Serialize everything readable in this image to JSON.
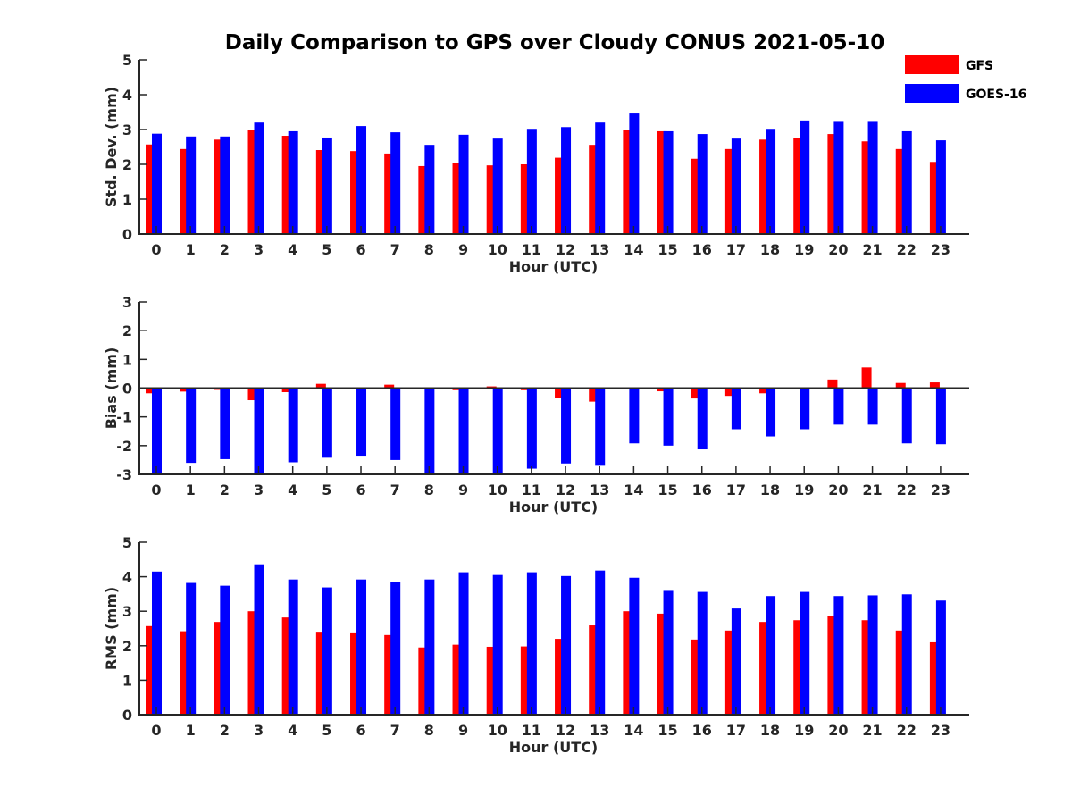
{
  "title": "Daily Comparison to GPS over Cloudy CONUS 2021-05-10",
  "legend": {
    "placement": "top-right",
    "entries": [
      {
        "name": "GFS",
        "color": "#ff0000"
      },
      {
        "name": "GOES-16",
        "color": "#0000ff"
      }
    ]
  },
  "chart_data": [
    {
      "type": "bar",
      "ylabel": "Std. Dev. (mm)",
      "xlabel": "Hour (UTC)",
      "ylim": [
        0,
        5
      ],
      "yticks": [
        0,
        1,
        2,
        3,
        4,
        5
      ],
      "categories": [
        "0",
        "1",
        "2",
        "3",
        "4",
        "5",
        "6",
        "7",
        "8",
        "9",
        "10",
        "11",
        "12",
        "13",
        "14",
        "15",
        "16",
        "17",
        "18",
        "19",
        "20",
        "21",
        "22",
        "23"
      ],
      "series": [
        {
          "name": "GFS",
          "color": "#ff0000",
          "values": [
            2.57,
            2.44,
            2.71,
            3.0,
            2.82,
            2.41,
            2.38,
            2.31,
            1.95,
            2.05,
            1.97,
            2.0,
            2.19,
            2.56,
            3.0,
            2.95,
            2.16,
            2.44,
            2.71,
            2.75,
            2.87,
            2.66,
            2.44,
            2.07
          ]
        },
        {
          "name": "GOES-16",
          "color": "#0000ff",
          "values": [
            2.88,
            2.8,
            2.8,
            3.2,
            2.95,
            2.77,
            3.1,
            2.92,
            2.56,
            2.85,
            2.74,
            3.02,
            3.07,
            3.2,
            3.46,
            2.95,
            2.87,
            2.74,
            3.02,
            3.26,
            3.22,
            3.22,
            2.95,
            2.69
          ]
        }
      ]
    },
    {
      "type": "bar",
      "ylabel": "Bias (mm)",
      "xlabel": "Hour (UTC)",
      "ylim": [
        -3,
        3
      ],
      "yticks": [
        -3,
        -2,
        -1,
        0,
        1,
        2,
        3
      ],
      "categories": [
        "0",
        "1",
        "2",
        "3",
        "4",
        "5",
        "6",
        "7",
        "8",
        "9",
        "10",
        "11",
        "12",
        "13",
        "14",
        "15",
        "16",
        "17",
        "18",
        "19",
        "20",
        "21",
        "22",
        "23"
      ],
      "series": [
        {
          "name": "GFS",
          "color": "#ff0000",
          "values": [
            -0.18,
            -0.12,
            -0.06,
            -0.42,
            -0.14,
            0.15,
            0.02,
            0.12,
            -0.02,
            -0.07,
            0.06,
            -0.07,
            -0.35,
            -0.47,
            0.0,
            -0.11,
            -0.36,
            -0.27,
            -0.18,
            0.02,
            0.3,
            0.72,
            0.18,
            0.2
          ]
        },
        {
          "name": "GOES-16",
          "color": "#0000ff",
          "values": [
            -3.0,
            -2.6,
            -2.47,
            -3.0,
            -2.58,
            -2.42,
            -2.38,
            -2.5,
            -3.0,
            -3.0,
            -3.0,
            -2.8,
            -2.62,
            -2.7,
            -1.92,
            -2.0,
            -2.13,
            -1.43,
            -1.68,
            -1.43,
            -1.27,
            -1.27,
            -1.92,
            -1.95
          ]
        }
      ]
    },
    {
      "type": "bar",
      "ylabel": "RMS (mm)",
      "xlabel": "Hour (UTC)",
      "ylim": [
        0,
        5
      ],
      "yticks": [
        0,
        1,
        2,
        3,
        4,
        5
      ],
      "categories": [
        "0",
        "1",
        "2",
        "3",
        "4",
        "5",
        "6",
        "7",
        "8",
        "9",
        "10",
        "11",
        "12",
        "13",
        "14",
        "15",
        "16",
        "17",
        "18",
        "19",
        "20",
        "21",
        "22",
        "23"
      ],
      "series": [
        {
          "name": "GFS",
          "color": "#ff0000",
          "values": [
            2.57,
            2.42,
            2.69,
            3.0,
            2.82,
            2.38,
            2.36,
            2.31,
            1.95,
            2.03,
            1.97,
            1.98,
            2.2,
            2.59,
            3.0,
            2.93,
            2.18,
            2.44,
            2.69,
            2.74,
            2.87,
            2.74,
            2.44,
            2.1
          ]
        },
        {
          "name": "GOES-16",
          "color": "#0000ff",
          "values": [
            4.15,
            3.82,
            3.74,
            4.36,
            3.92,
            3.69,
            3.92,
            3.85,
            3.92,
            4.13,
            4.05,
            4.13,
            4.02,
            4.18,
            3.97,
            3.59,
            3.56,
            3.08,
            3.44,
            3.56,
            3.44,
            3.46,
            3.49,
            3.31
          ]
        }
      ]
    }
  ]
}
